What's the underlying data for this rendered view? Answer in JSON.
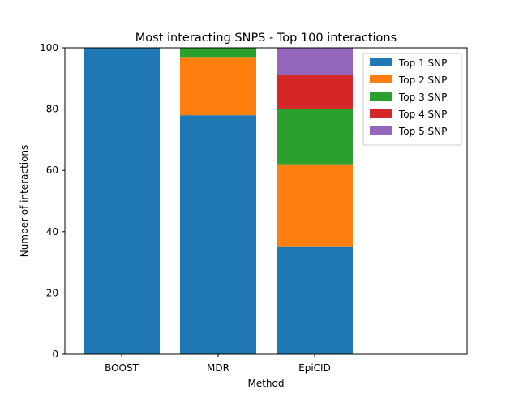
{
  "chart_data": {
    "type": "bar",
    "stacked": true,
    "title": "Most interacting SNPS - Top 100 interactions",
    "xlabel": "Method",
    "ylabel": "Number of interactions",
    "categories": [
      "BOOST",
      "MDR",
      "EpiCID"
    ],
    "ylim": [
      0,
      100
    ],
    "yticks": [
      0,
      20,
      40,
      60,
      80,
      100
    ],
    "grid": false,
    "legend_position": "top-right",
    "series": [
      {
        "name": "Top 1 SNP",
        "color": "#1f77b4",
        "values": [
          100,
          78,
          35
        ]
      },
      {
        "name": "Top 2 SNP",
        "color": "#ff7f0e",
        "values": [
          0,
          19,
          27
        ]
      },
      {
        "name": "Top 3 SNP",
        "color": "#2ca02c",
        "values": [
          0,
          3,
          18
        ]
      },
      {
        "name": "Top 4 SNP",
        "color": "#d62728",
        "values": [
          0,
          0,
          11
        ]
      },
      {
        "name": "Top 5 SNP",
        "color": "#9467bd",
        "values": [
          0,
          0,
          9
        ]
      }
    ]
  }
}
